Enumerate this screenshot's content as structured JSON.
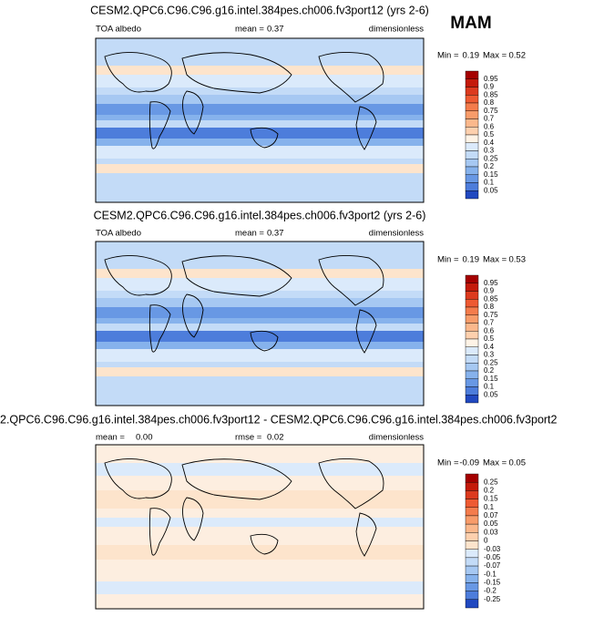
{
  "season": "MAM",
  "panels": [
    {
      "title": "CESM2.QPC6.C96.C96.g16.intel.384pes.ch006.fv3port12 (yrs 2-6)",
      "left_label": "TOA albedo",
      "stat_label": "mean =",
      "stat_value": "0.37",
      "units": "dimensionless",
      "min_label": "Min =",
      "min": "0.19",
      "max_label": "Max =",
      "max": "0.52",
      "colorbar": {
        "levels": [
          0.95,
          0.9,
          0.85,
          0.8,
          0.75,
          0.7,
          0.6,
          0.5,
          0.4,
          0.3,
          0.25,
          0.2,
          0.15,
          0.1,
          0.05
        ],
        "colors": [
          "#a50000",
          "#c41a0a",
          "#dc3a1e",
          "#ee5a32",
          "#f47c4c",
          "#f89c6a",
          "#fbb88c",
          "#fdd0ae",
          "#fef3e6",
          "#dbeafb",
          "#c3dbf7",
          "#a6c8f2",
          "#86b2ec",
          "#6898e4",
          "#4d7ddb",
          "#2149c0"
        ]
      }
    },
    {
      "title": "CESM2.QPC6.C96.C96.g16.intel.384pes.ch006.fv3port2 (yrs 2-6)",
      "left_label": "TOA albedo",
      "stat_label": "mean =",
      "stat_value": "0.37",
      "units": "dimensionless",
      "min_label": "Min =",
      "min": "0.19",
      "max_label": "Max =",
      "max": "0.53",
      "colorbar": {
        "levels": [
          0.95,
          0.9,
          0.85,
          0.8,
          0.75,
          0.7,
          0.6,
          0.5,
          0.4,
          0.3,
          0.25,
          0.2,
          0.15,
          0.1,
          0.05
        ],
        "colors": [
          "#a50000",
          "#c41a0a",
          "#dc3a1e",
          "#ee5a32",
          "#f47c4c",
          "#f89c6a",
          "#fbb88c",
          "#fdd0ae",
          "#fef3e6",
          "#dbeafb",
          "#c3dbf7",
          "#a6c8f2",
          "#86b2ec",
          "#6898e4",
          "#4d7ddb",
          "#2149c0"
        ]
      }
    },
    {
      "title": "2.QPC6.C96.C96.g16.intel.384pes.ch006.fv3port12 - CESM2.QPC6.C96.C96.g16.intel.384pes.ch006.fv3port2",
      "left_label": "mean =",
      "stat_label": "rmse =",
      "stat_value": "0.02",
      "left_value": "0.00",
      "units": "dimensionless",
      "min_label": "Min =",
      "min": "-0.09",
      "max_label": "Max =",
      "max": "0.05",
      "colorbar": {
        "levels": [
          0.25,
          0.2,
          0.15,
          0.1,
          0.07,
          0.05,
          0.03,
          0,
          -0.03,
          -0.05,
          -0.07,
          -0.1,
          -0.15,
          -0.2,
          -0.25
        ],
        "colors": [
          "#a50000",
          "#c41a0a",
          "#dc3a1e",
          "#ee5a32",
          "#f47c4c",
          "#f89c6a",
          "#fbb88c",
          "#fdd0ae",
          "#fde4cc",
          "#dbeafb",
          "#c3dbf7",
          "#a6c8f2",
          "#86b2ec",
          "#6898e4",
          "#4d7ddb",
          "#2149c0"
        ]
      }
    }
  ]
}
